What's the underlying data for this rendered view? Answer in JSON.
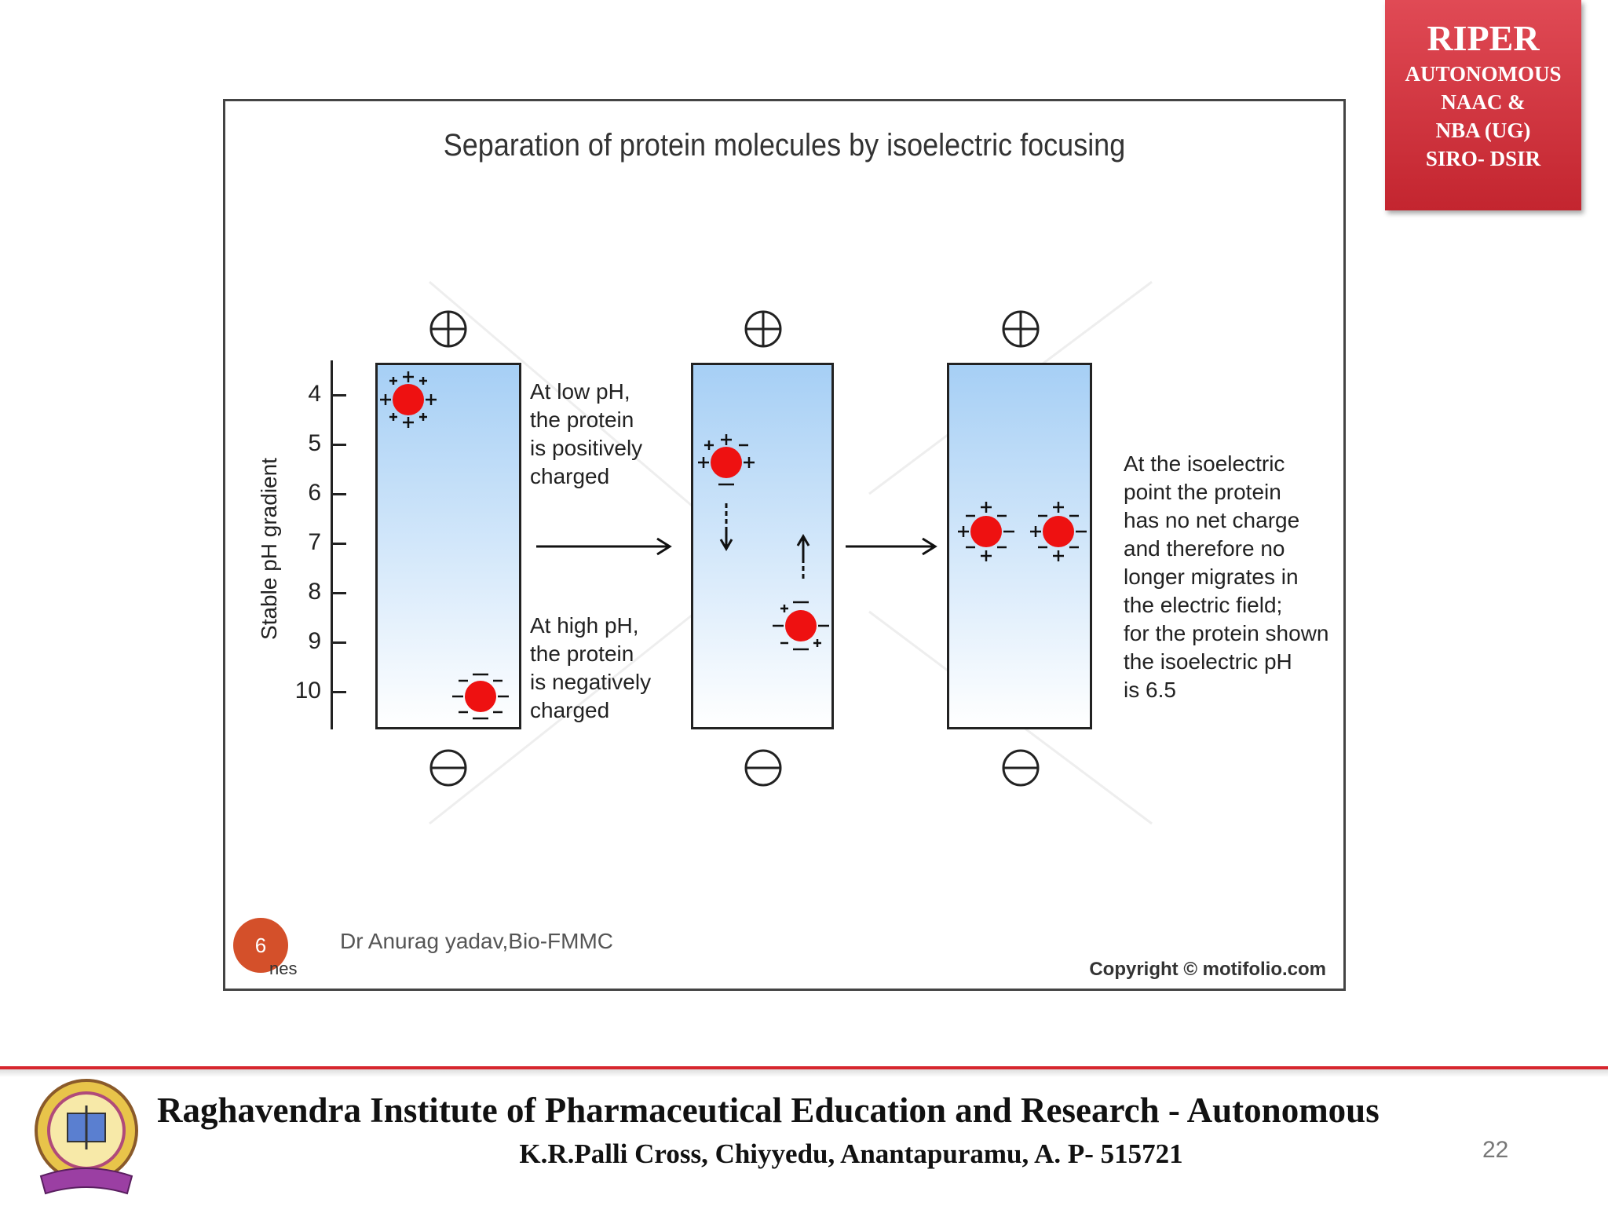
{
  "badge": {
    "title": "RIPER",
    "lines": [
      "AUTONOMOUS",
      "NAAC &",
      "NBA (UG)",
      "SIRO- DSIR"
    ]
  },
  "diagram": {
    "title": "Separation of protein molecules by isoelectric focusing",
    "axis_label": "Stable pH gradient",
    "ticks": [
      "4",
      "5",
      "6",
      "7",
      "8",
      "9",
      "10"
    ],
    "low_ph_note": [
      "At low pH,",
      "the protein",
      "is positively",
      "charged"
    ],
    "high_ph_note": [
      "At high pH,",
      "the protein",
      "is negatively",
      "charged"
    ],
    "isoelectric_note": [
      "At the isoelectric",
      "point the protein",
      "has no net charge",
      "and therefore no",
      "longer migrates in",
      "the electric field;",
      "for the protein shown",
      "the isoelectric pH",
      "is 6.5"
    ],
    "author": "Dr Anurag yadav,Bio-FMMC",
    "copyright": "Copyright © motifolio.com",
    "page_circle": "6",
    "page_circle_sub": "nes"
  },
  "colors": {
    "accent_red": "#d7262e",
    "protein_red": "#ee1111",
    "column_blue": "#a6cff5"
  },
  "footer": {
    "institute": "Raghavendra Institute of Pharmaceutical Education and Research - Autonomous",
    "address": "K.R.Palli Cross, Chiyyedu, Anantapuramu, A. P- 515721",
    "slide_number": "22"
  }
}
